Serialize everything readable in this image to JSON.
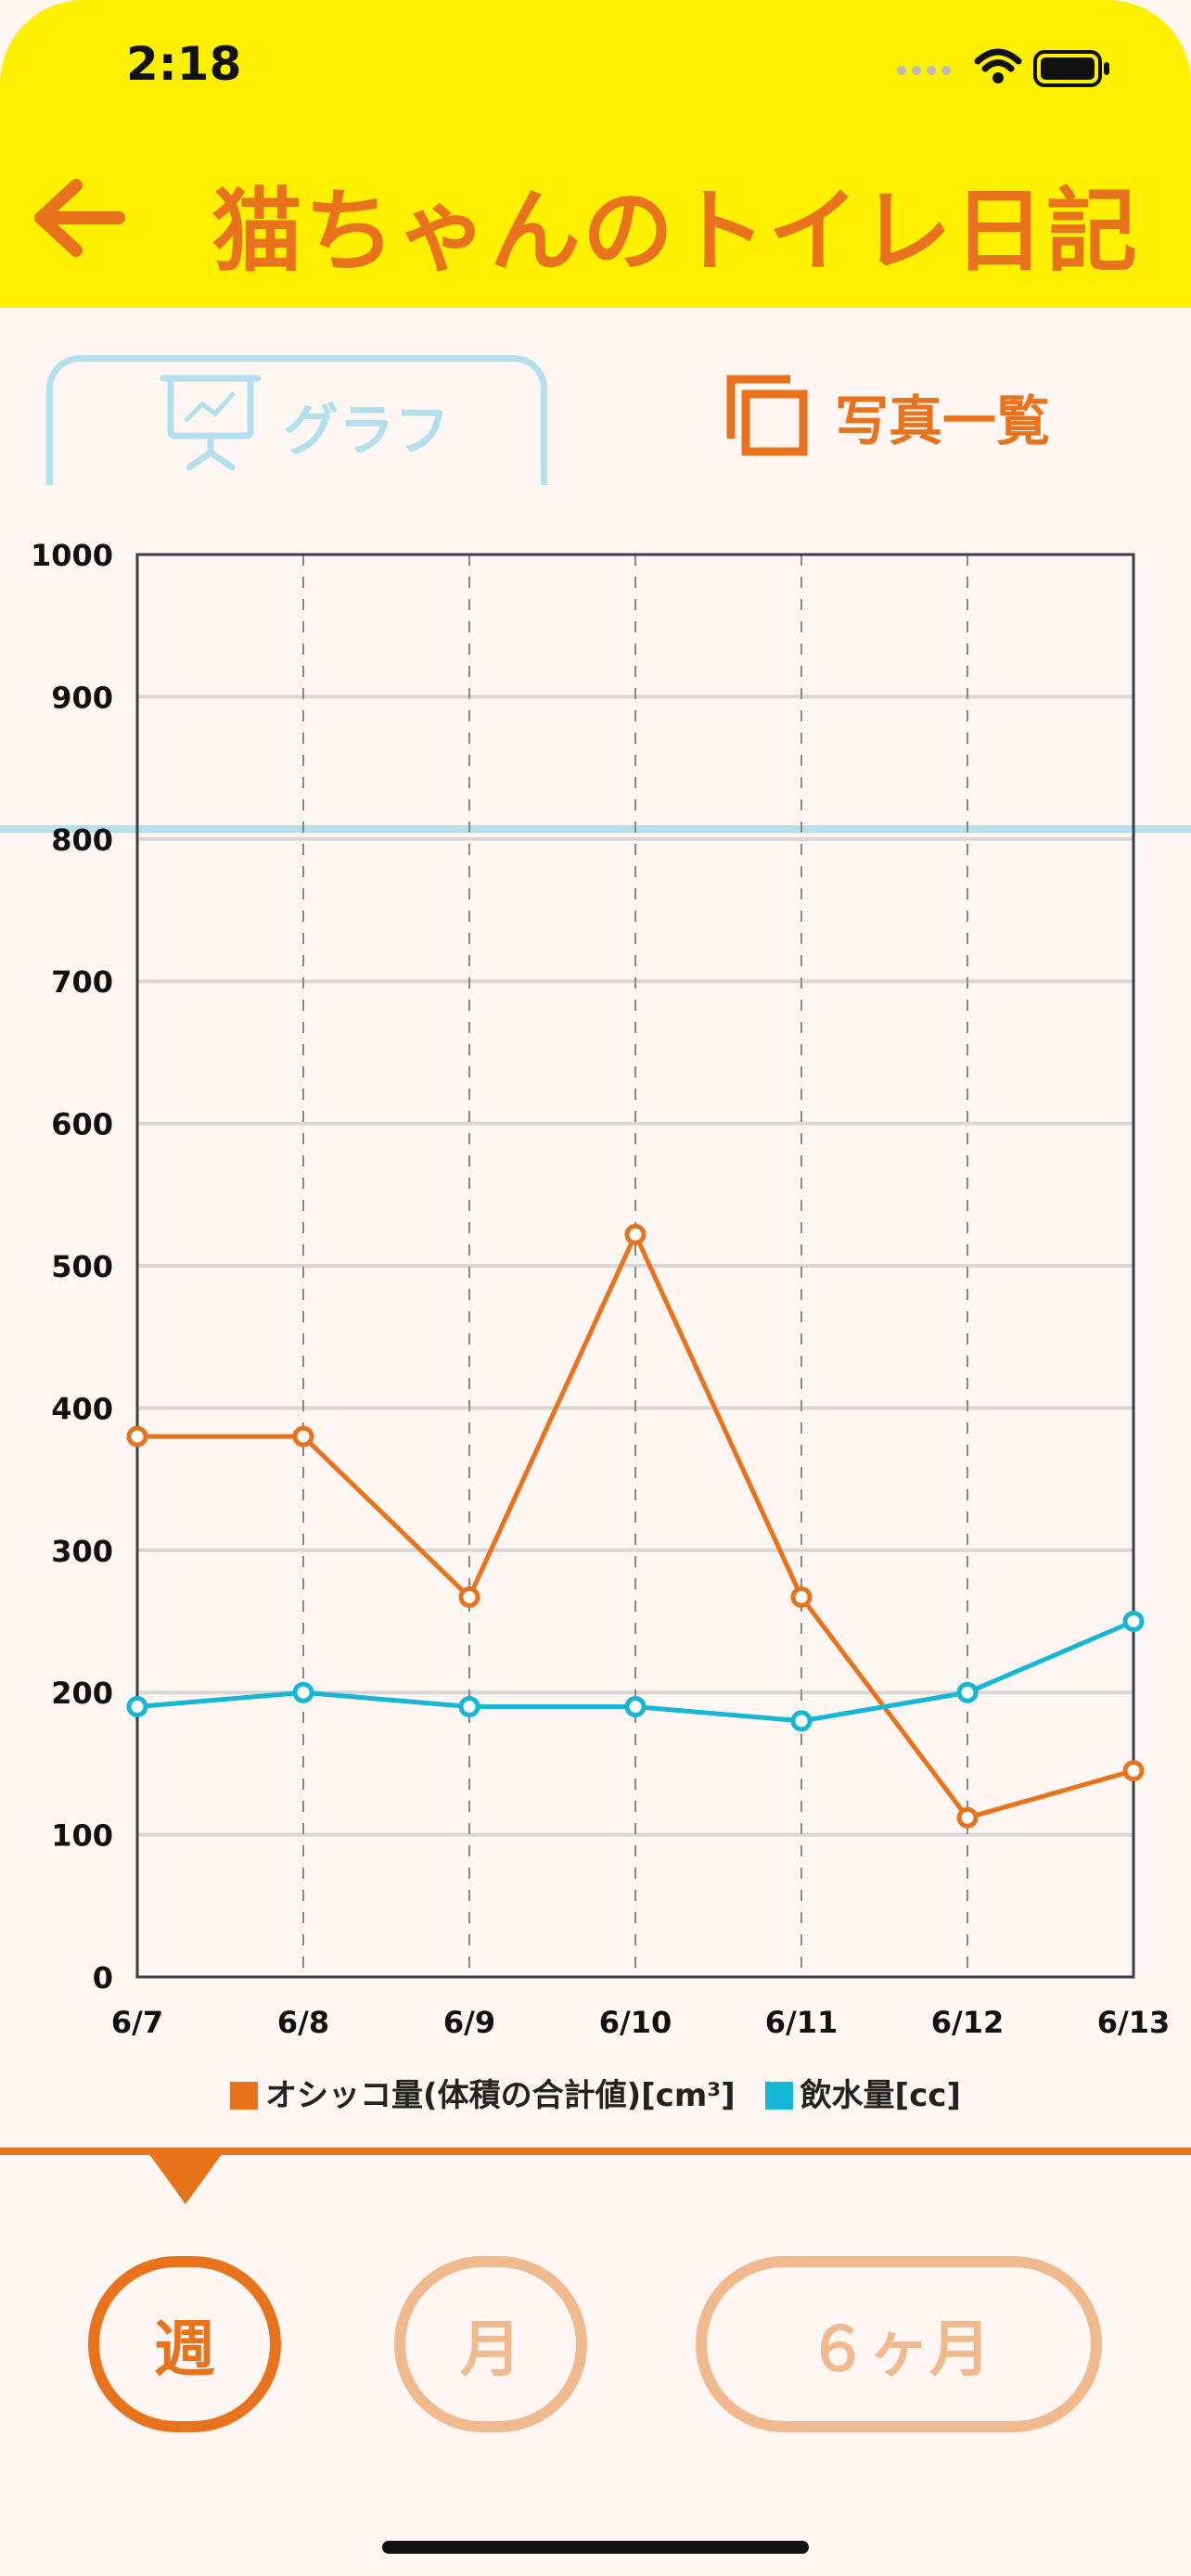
{
  "status_bar": {
    "time": "2:18"
  },
  "header": {
    "title": "猫ちゃんのトイレ日記",
    "back_icon": "arrow-left-icon"
  },
  "tabs": [
    {
      "label": "グラフ",
      "icon": "presentation-chart-icon",
      "active": true
    },
    {
      "label": "写真一覧",
      "icon": "photo-stack-icon",
      "active": false
    }
  ],
  "colors": {
    "header_bg": "#fff000",
    "accent_orange": "#e8731c",
    "accent_cyan": "#15b6d6",
    "tab_blue": "#b3e0ec",
    "inactive_orange": "#f1b98e",
    "page_bg": "#fdf6f3"
  },
  "chart_data": {
    "type": "line",
    "categories": [
      "6/7",
      "6/8",
      "6/9",
      "6/10",
      "6/11",
      "6/12",
      "6/13"
    ],
    "ylim": [
      0,
      1000
    ],
    "yticks": [
      0,
      100,
      200,
      300,
      400,
      500,
      600,
      700,
      800,
      900,
      1000
    ],
    "grid": true,
    "legend_position": "bottom",
    "series": [
      {
        "name": "オシッコ量(体積の合計値)[cm³]",
        "color": "#e8731c",
        "values": [
          380,
          380,
          267,
          522,
          267,
          112,
          145
        ]
      },
      {
        "name": "飲水量[cc]",
        "color": "#15b6d6",
        "values": [
          190,
          200,
          190,
          190,
          180,
          200,
          250
        ]
      }
    ]
  },
  "period_selector": {
    "options": [
      {
        "label": "週",
        "active": true
      },
      {
        "label": "月",
        "active": false
      },
      {
        "label": "６ヶ月",
        "active": false
      }
    ]
  }
}
